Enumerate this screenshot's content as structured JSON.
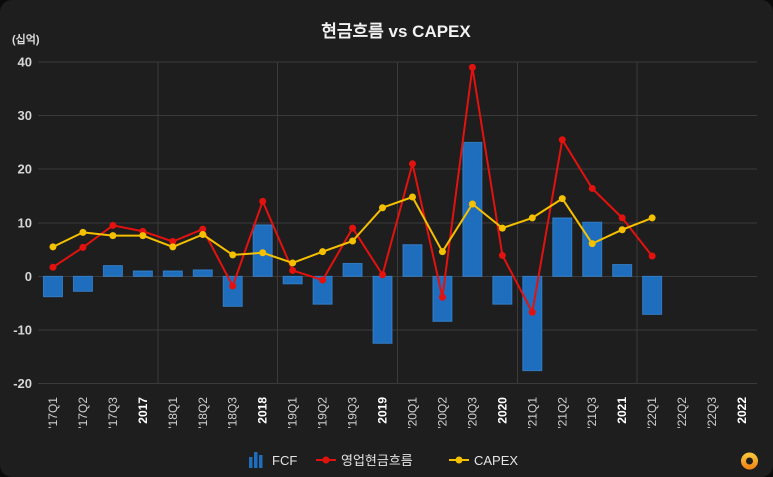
{
  "chart_data": {
    "type": "bar",
    "title": "현금흐름 vs CAPEX",
    "ylabel": "(십억)",
    "xlabel": "",
    "categories": [
      "'17Q1",
      "'17Q2",
      "'17Q3",
      "2017",
      "'18Q1",
      "'18Q2",
      "'18Q3",
      "2018",
      "'19Q1",
      "'19Q2",
      "'19Q3",
      "2019",
      "'20Q1",
      "'20Q2",
      "'20Q3",
      "2020",
      "'21Q1",
      "'21Q2",
      "'21Q3",
      "2021",
      "'22Q1",
      "'22Q2",
      "'22Q3",
      "2022"
    ],
    "series": [
      {
        "name": "FCF",
        "type": "bar",
        "color": "#1f6ebd",
        "values": [
          -3.8,
          -2.8,
          2.0,
          1.0,
          1.0,
          1.2,
          -5.6,
          9.6,
          -1.4,
          -5.2,
          2.4,
          -12.5,
          5.9,
          -8.4,
          25.0,
          -5.2,
          -17.6,
          10.9,
          10.1,
          2.2,
          -7.1,
          null,
          null,
          null
        ]
      },
      {
        "name": "영업현금흐름",
        "type": "line",
        "color": "#e3120f",
        "values": [
          1.7,
          5.4,
          9.5,
          8.4,
          6.5,
          8.8,
          -1.8,
          14.0,
          1.1,
          -0.7,
          9.0,
          0.3,
          21.0,
          -3.9,
          39.0,
          3.9,
          -6.7,
          25.5,
          16.4,
          10.9,
          3.8,
          null,
          null,
          null
        ]
      },
      {
        "name": "CAPEX",
        "type": "line",
        "color": "#f5c000",
        "values": [
          5.5,
          8.2,
          7.6,
          7.6,
          5.5,
          7.8,
          4.0,
          4.4,
          2.5,
          4.6,
          6.6,
          12.8,
          14.8,
          4.6,
          13.5,
          9.0,
          10.9,
          14.5,
          6.1,
          8.7,
          10.9,
          null,
          null,
          null
        ]
      }
    ],
    "ylim": [
      -20,
      40
    ],
    "yticks": [
      40,
      30,
      20,
      10,
      0,
      -10,
      -20
    ],
    "grid": true,
    "legend": "bottom-center"
  },
  "logo": {
    "icon": "b-logo-icon",
    "color": "#f4a11f"
  }
}
